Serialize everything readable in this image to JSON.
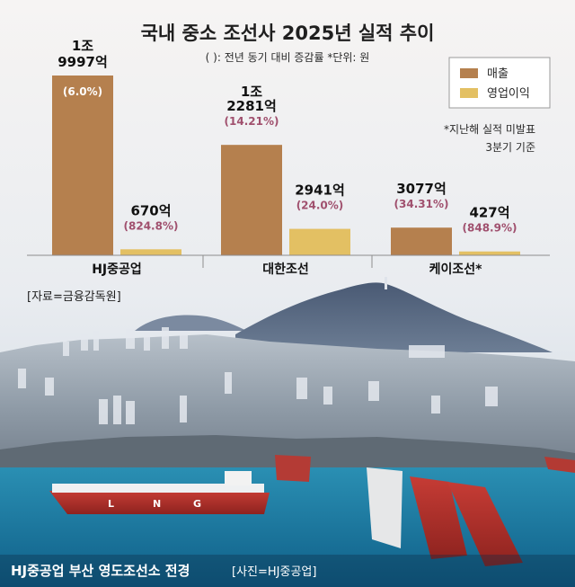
{
  "title": "국내 중소 조선사 2025년 실적 추이",
  "subtitle": "( ): 전년 동기 대비 증감률   *단위: 원",
  "legend": {
    "revenue": "매출",
    "operating_profit": "영업이익"
  },
  "note": [
    "*지난해 실적 미발표",
    "3분기 기준"
  ],
  "source": "[자료=금융감독원]",
  "caption": "HJ중공업 부산 영도조선소 전경",
  "caption_credit": "[사진=HJ중공업]",
  "colors": {
    "revenue": "#b5804e",
    "operating_profit": "#e3c063",
    "change_text": "#a0506e",
    "background": "#f6f4f3"
  },
  "chart_data": {
    "type": "bar",
    "title": "국내 중소 조선사 2025년 실적 추이",
    "unit": "원",
    "categories": [
      "HJ중공업",
      "대한조선",
      "케이조선*"
    ],
    "series": [
      {
        "name": "매출",
        "values": [
          19997,
          12281,
          3077
        ],
        "labels": [
          "1조\n9997억",
          "1조\n2281억",
          "3077억"
        ],
        "changes": [
          "(6.0%)",
          "(14.21%)",
          "(34.31%)"
        ]
      },
      {
        "name": "영업이익",
        "values": [
          670,
          2941,
          427
        ],
        "labels": [
          "670억",
          "2941억",
          "427억"
        ],
        "changes": [
          "(824.8%)",
          "(24.0%)",
          "(848.9%)"
        ]
      }
    ],
    "legend_position": "top-right",
    "grid": false
  }
}
